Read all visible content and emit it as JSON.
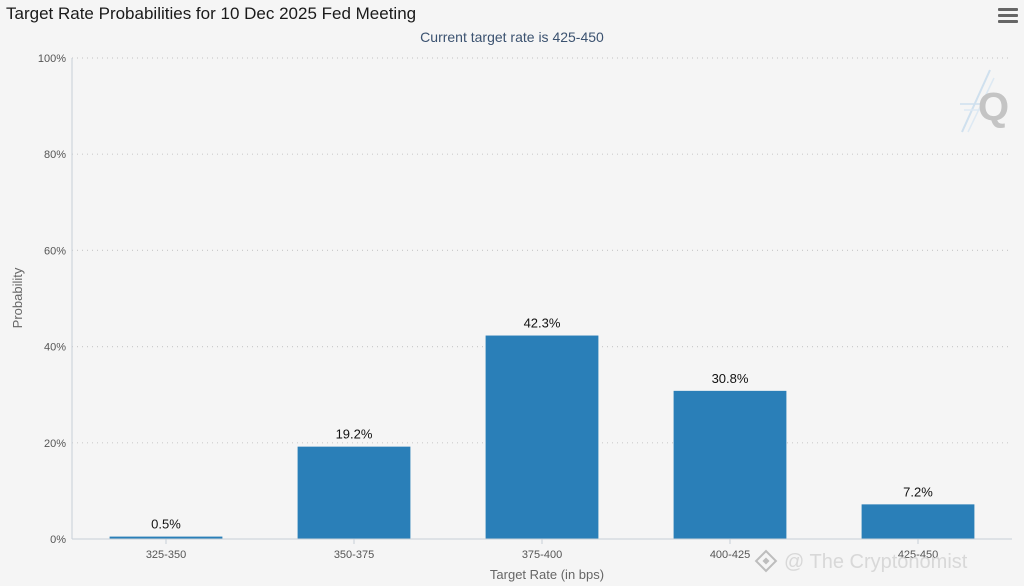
{
  "menu_icon": "hamburger-menu-icon",
  "logo_icon": "quikstrike-q-logo-icon",
  "watermark": {
    "text": "@ The Cryptonomist",
    "icon": "binance-diamond-icon"
  },
  "colors": {
    "bar": "#2a7fb8",
    "grid": "#cccccc",
    "axis": "#c8d0d8",
    "background": "#f5f5f5"
  },
  "chart_data": {
    "type": "bar",
    "title": "Target Rate Probabilities for 10 Dec 2025 Fed Meeting",
    "subtitle": "Current target rate is 425-450",
    "xlabel": "Target Rate (in bps)",
    "ylabel": "Probability",
    "categories": [
      "325-350",
      "350-375",
      "375-400",
      "400-425",
      "425-450"
    ],
    "values": [
      0.5,
      19.2,
      42.3,
      30.8,
      7.2
    ],
    "data_labels": [
      "0.5%",
      "19.2%",
      "42.3%",
      "30.8%",
      "7.2%"
    ],
    "ylim": [
      0,
      100
    ],
    "yticks": [
      0,
      20,
      40,
      60,
      80,
      100
    ],
    "ytick_labels": [
      "0%",
      "20%",
      "40%",
      "60%",
      "80%",
      "100%"
    ],
    "grid": true,
    "legend": "none"
  }
}
